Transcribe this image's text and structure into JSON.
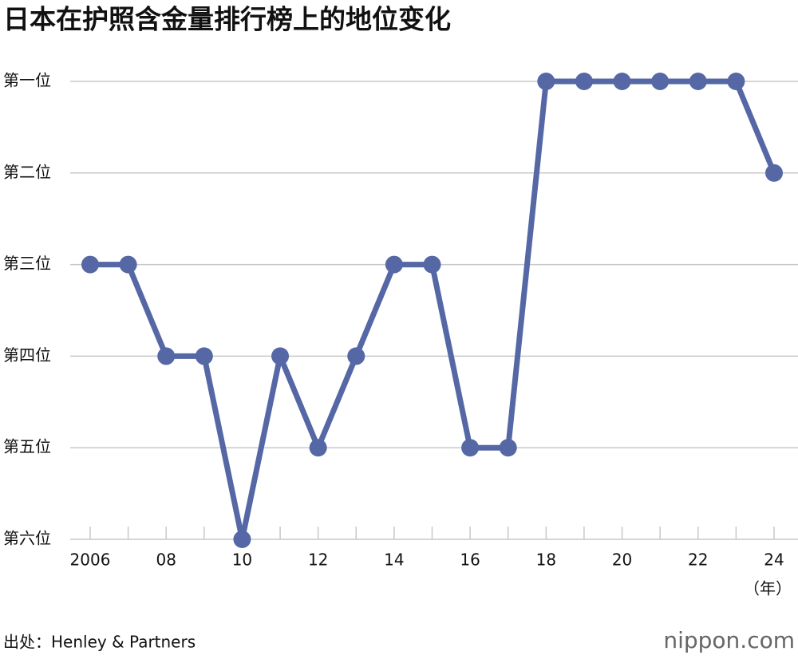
{
  "chart_data": {
    "type": "line",
    "title": "日本在护照含金量排行榜上的地位变化",
    "x": [
      2006,
      2007,
      2008,
      2009,
      2010,
      2011,
      2012,
      2013,
      2014,
      2015,
      2016,
      2017,
      2018,
      2019,
      2020,
      2021,
      2022,
      2023,
      2024
    ],
    "series": [
      {
        "color": "#5567a5",
        "values": [
          3,
          3,
          4,
          4,
          6,
          4,
          5,
          4,
          3,
          3,
          5,
          5,
          1,
          1,
          1,
          1,
          1,
          1,
          2
        ]
      }
    ],
    "xlim": [
      2006,
      2024
    ],
    "xticks": [
      2006,
      {
        "value": 2008,
        "label": "08"
      },
      {
        "value": 2010,
        "label": "10"
      },
      {
        "value": 2012,
        "label": "12"
      },
      {
        "value": 2014,
        "label": "14"
      },
      {
        "value": 2016,
        "label": "16"
      },
      {
        "value": 2018,
        "label": "18"
      },
      {
        "value": 2020,
        "label": "20"
      },
      {
        "value": 2022,
        "label": "22"
      },
      {
        "value": 2024,
        "label": "24"
      }
    ],
    "x_label": "（年）",
    "ylim": [
      6,
      1
    ],
    "yticks": [
      {
        "value": 1,
        "label": "第一位"
      },
      {
        "value": 2,
        "label": "第二位"
      },
      {
        "value": 3,
        "label": "第三位"
      },
      {
        "value": 4,
        "label": "第四位"
      },
      {
        "value": 5,
        "label": "第五位"
      },
      {
        "value": 6,
        "label": "第六位"
      }
    ],
    "grid": true,
    "source": "出处：Henley & Partners",
    "logo": "nippon.com"
  }
}
